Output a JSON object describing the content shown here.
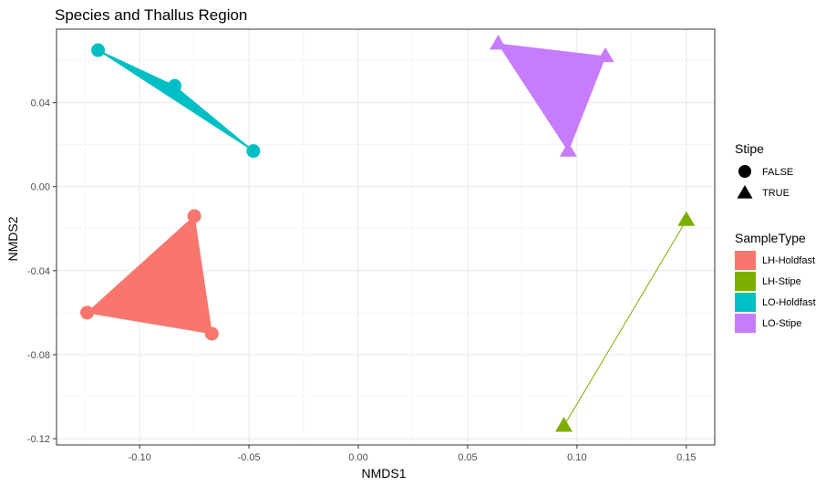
{
  "chart_data": {
    "type": "scatter",
    "title": "Species and Thallus Region",
    "xlabel": "NMDS1",
    "ylabel": "NMDS2",
    "xlim": [
      -0.138,
      0.163
    ],
    "ylim": [
      -0.123,
      0.075
    ],
    "x_ticks": [
      -0.1,
      -0.05,
      0.0,
      0.05,
      0.1,
      0.15
    ],
    "x_tick_labels": [
      "-0.10",
      "-0.05",
      "0.00",
      "0.05",
      "0.10",
      "0.15"
    ],
    "y_ticks": [
      0.04,
      0.0,
      -0.04,
      -0.08,
      -0.12
    ],
    "y_tick_labels": [
      "0.04",
      "0.00",
      "-0.04",
      "-0.08",
      "-0.12"
    ],
    "grid": true,
    "legend_position": "right",
    "legend_shape": {
      "title": "Stipe",
      "entries": [
        {
          "label": "FALSE",
          "shape": "circle"
        },
        {
          "label": "TRUE",
          "shape": "triangle"
        }
      ]
    },
    "legend_color": {
      "title": "SampleType",
      "entries": [
        {
          "label": "LH-Holdfast",
          "color": "#F8766D"
        },
        {
          "label": "LH-Stipe",
          "color": "#7CAE00"
        },
        {
          "label": "LO-Holdfast",
          "color": "#00BFC4"
        },
        {
          "label": "LO-Stipe",
          "color": "#C77CFF"
        }
      ]
    },
    "series": [
      {
        "name": "LH-Holdfast",
        "color": "#F8766D",
        "shape": "circle",
        "points": [
          {
            "x": -0.124,
            "y": -0.06
          },
          {
            "x": -0.075,
            "y": -0.014
          },
          {
            "x": -0.067,
            "y": -0.07
          }
        ]
      },
      {
        "name": "LH-Stipe",
        "color": "#7CAE00",
        "shape": "triangle",
        "points": [
          {
            "x": 0.094,
            "y": -0.114
          },
          {
            "x": 0.15,
            "y": -0.016
          }
        ]
      },
      {
        "name": "LO-Holdfast",
        "color": "#00BFC4",
        "shape": "circle",
        "points": [
          {
            "x": -0.119,
            "y": 0.065
          },
          {
            "x": -0.084,
            "y": 0.048
          },
          {
            "x": -0.048,
            "y": 0.017
          }
        ]
      },
      {
        "name": "LO-Stipe",
        "color": "#C77CFF",
        "shape": "triangle",
        "points": [
          {
            "x": 0.064,
            "y": 0.068
          },
          {
            "x": 0.113,
            "y": 0.062
          },
          {
            "x": 0.096,
            "y": 0.017
          }
        ]
      }
    ]
  }
}
